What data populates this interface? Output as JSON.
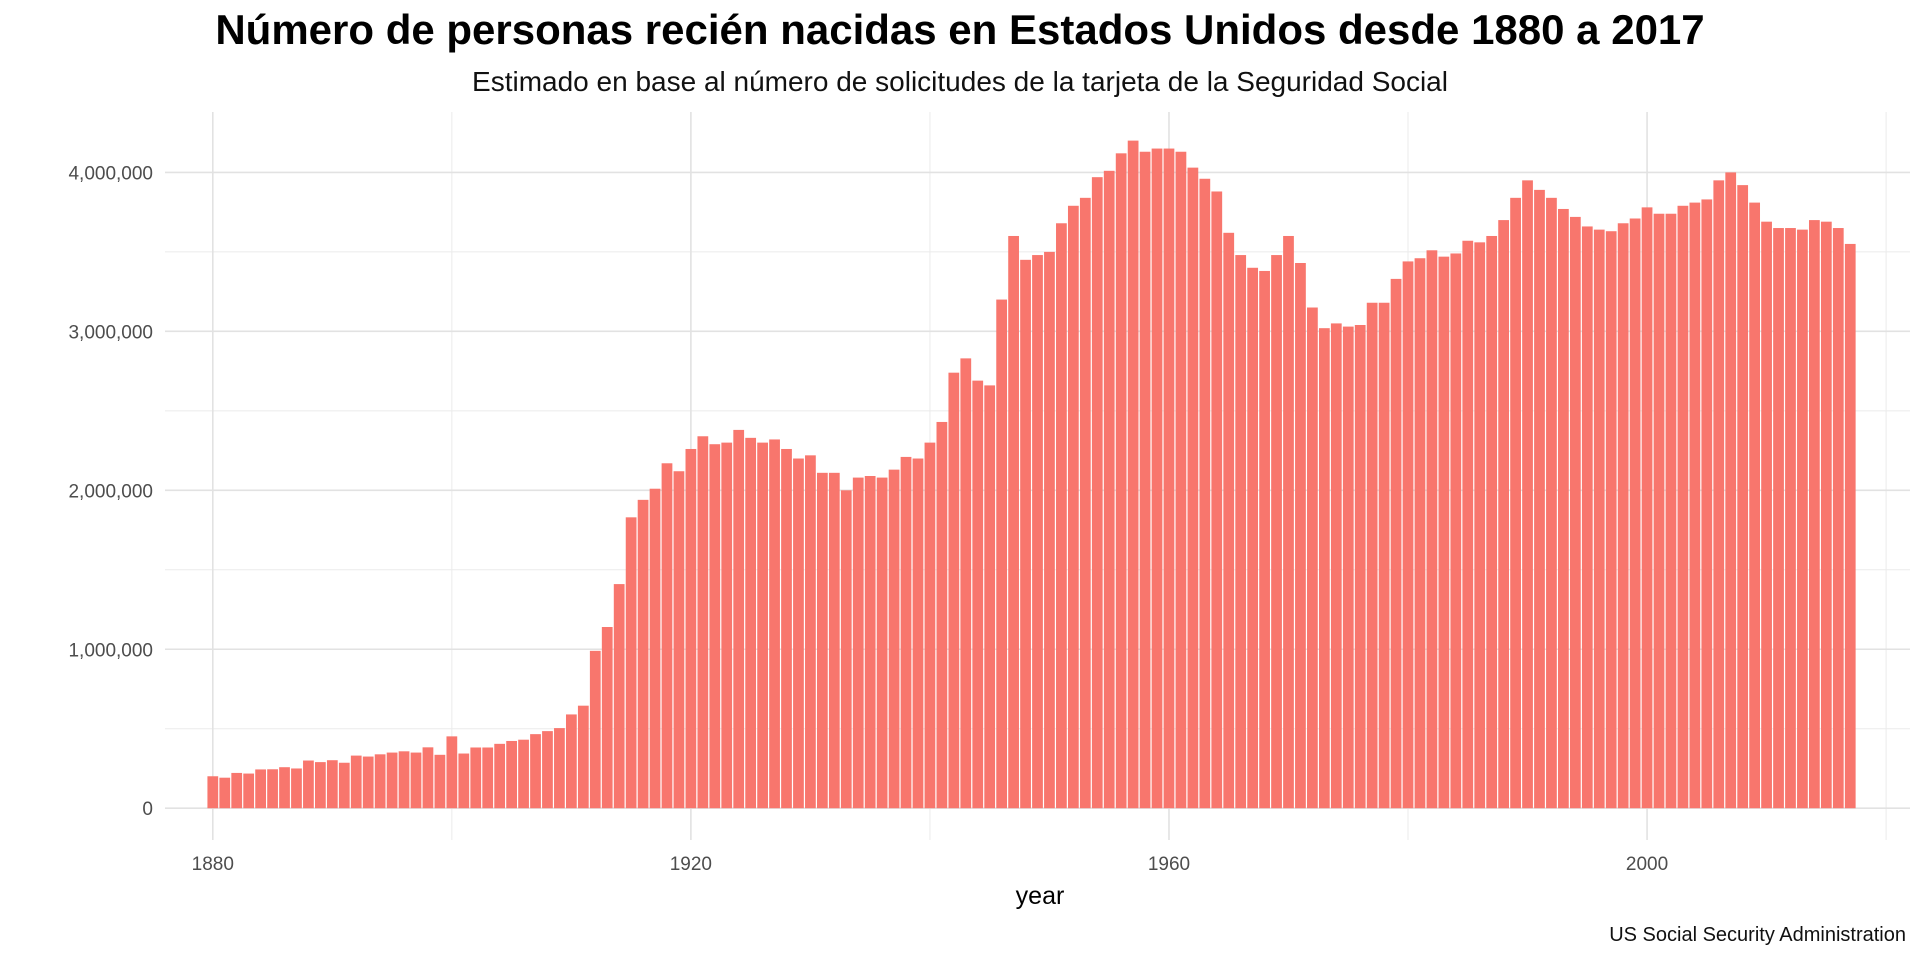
{
  "chart_data": {
    "type": "bar",
    "title": "Número de personas recién nacidas en Estados Unidos desde 1880 a 2017",
    "subtitle": "Estimado en base al número de solicitudes de la tarjeta de la Seguridad Social",
    "xlabel": "year",
    "ylabel": "",
    "caption": "US Social Security Administration",
    "bar_color": "#F8766D",
    "grid": true,
    "xlim": [
      1876,
      2022
    ],
    "ylim": [
      -200000,
      4380000
    ],
    "x_ticks": [
      1880,
      1920,
      1960,
      2000
    ],
    "x_tick_labels": [
      "1880",
      "1920",
      "1960",
      "2000"
    ],
    "y_ticks": [
      0,
      1000000,
      2000000,
      3000000,
      4000000
    ],
    "y_tick_labels": [
      "0",
      "1,000,000",
      "2,000,000",
      "3,000,000",
      "4,000,000"
    ],
    "x": [
      1880,
      1881,
      1882,
      1883,
      1884,
      1885,
      1886,
      1887,
      1888,
      1889,
      1890,
      1891,
      1892,
      1893,
      1894,
      1895,
      1896,
      1897,
      1898,
      1899,
      1900,
      1901,
      1902,
      1903,
      1904,
      1905,
      1906,
      1907,
      1908,
      1909,
      1910,
      1911,
      1912,
      1913,
      1914,
      1915,
      1916,
      1917,
      1918,
      1919,
      1920,
      1921,
      1922,
      1923,
      1924,
      1925,
      1926,
      1927,
      1928,
      1929,
      1930,
      1931,
      1932,
      1933,
      1934,
      1935,
      1936,
      1937,
      1938,
      1939,
      1940,
      1941,
      1942,
      1943,
      1944,
      1945,
      1946,
      1947,
      1948,
      1949,
      1950,
      1951,
      1952,
      1953,
      1954,
      1955,
      1956,
      1957,
      1958,
      1959,
      1960,
      1961,
      1962,
      1963,
      1964,
      1965,
      1966,
      1967,
      1968,
      1969,
      1970,
      1971,
      1972,
      1973,
      1974,
      1975,
      1976,
      1977,
      1978,
      1979,
      1980,
      1981,
      1982,
      1983,
      1984,
      1985,
      1986,
      1987,
      1988,
      1989,
      1990,
      1991,
      1992,
      1993,
      1994,
      1995,
      1996,
      1997,
      1998,
      1999,
      2000,
      2001,
      2002,
      2003,
      2004,
      2005,
      2006,
      2007,
      2008,
      2009,
      2010,
      2011,
      2012,
      2013,
      2014,
      2015,
      2016,
      2017
    ],
    "values": [
      201000,
      192000,
      222000,
      218000,
      244000,
      245000,
      258000,
      250000,
      300000,
      290000,
      302000,
      286000,
      331000,
      325000,
      339000,
      350000,
      358000,
      350000,
      383000,
      336000,
      452000,
      344000,
      382000,
      382000,
      405000,
      423000,
      431000,
      466000,
      485000,
      504000,
      590000,
      645000,
      990000,
      1140000,
      1410000,
      1830000,
      1940000,
      2010000,
      2170000,
      2120000,
      2260000,
      2340000,
      2290000,
      2300000,
      2380000,
      2330000,
      2300000,
      2320000,
      2260000,
      2200000,
      2220000,
      2110000,
      2110000,
      2000000,
      2080000,
      2090000,
      2080000,
      2130000,
      2210000,
      2200000,
      2300000,
      2430000,
      2740000,
      2830000,
      2690000,
      2660000,
      3200000,
      3600000,
      3450000,
      3480000,
      3500000,
      3680000,
      3790000,
      3840000,
      3970000,
      4010000,
      4120000,
      4200000,
      4130000,
      4150000,
      4150000,
      4130000,
      4030000,
      3960000,
      3880000,
      3620000,
      3480000,
      3400000,
      3380000,
      3480000,
      3600000,
      3430000,
      3150000,
      3020000,
      3050000,
      3030000,
      3040000,
      3180000,
      3180000,
      3330000,
      3440000,
      3460000,
      3510000,
      3470000,
      3490000,
      3570000,
      3560000,
      3600000,
      3700000,
      3840000,
      3950000,
      3890000,
      3840000,
      3770000,
      3720000,
      3660000,
      3640000,
      3630000,
      3680000,
      3710000,
      3780000,
      3740000,
      3740000,
      3790000,
      3810000,
      3830000,
      3950000,
      4000000,
      3920000,
      3810000,
      3690000,
      3650000,
      3650000,
      3640000,
      3700000,
      3690000,
      3650000,
      3550000
    ]
  }
}
